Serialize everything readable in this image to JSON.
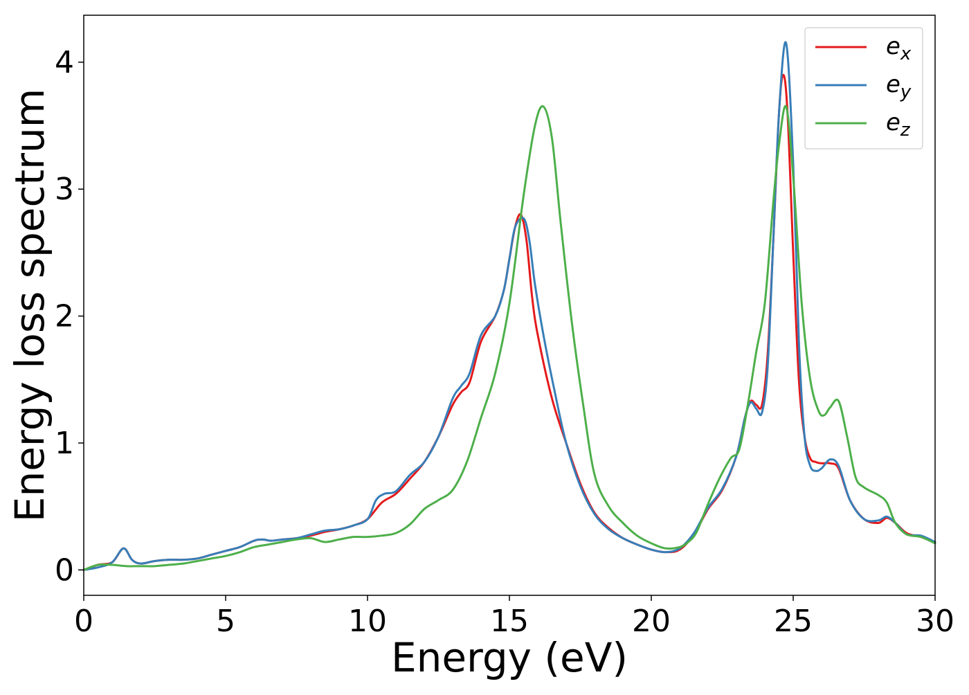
{
  "chart_data": {
    "type": "line",
    "title": "",
    "xlabel": "Energy (eV)",
    "ylabel": "Energy loss spectrum",
    "xlim": [
      0,
      30
    ],
    "ylim": [
      -0.2,
      4.37
    ],
    "xticks": [
      0,
      5,
      10,
      15,
      20,
      25,
      30
    ],
    "xtick_labels": [
      "0",
      "5",
      "10",
      "15",
      "20",
      "25",
      "30"
    ],
    "yticks": [
      0,
      1,
      2,
      3,
      4
    ],
    "ytick_labels": [
      "0",
      "1",
      "2",
      "3",
      "4"
    ],
    "grid": false,
    "legend": {
      "position": "top-right"
    },
    "series": [
      {
        "name": "e_x",
        "label_base": "e",
        "label_sub": "x",
        "color": "#e41a1c",
        "x": [
          0,
          0.5,
          1.0,
          1.4,
          1.7,
          2.0,
          2.5,
          3.0,
          3.5,
          4.0,
          4.5,
          5.0,
          5.5,
          6.0,
          6.3,
          6.6,
          7.0,
          7.5,
          8.0,
          8.5,
          9.0,
          9.5,
          10.0,
          10.5,
          11.0,
          11.5,
          12.0,
          12.5,
          13.0,
          13.3,
          13.6,
          14.0,
          14.5,
          14.8,
          15.0,
          15.2,
          15.4,
          15.6,
          15.8,
          16.0,
          16.5,
          17.0,
          17.5,
          18.0,
          18.5,
          19.0,
          19.5,
          20.0,
          20.5,
          21.0,
          21.5,
          22.0,
          22.5,
          23.0,
          23.3,
          23.5,
          23.7,
          23.9,
          24.1,
          24.3,
          24.5,
          24.65,
          24.8,
          25.0,
          25.2,
          25.4,
          25.6,
          25.8,
          26.0,
          26.3,
          26.6,
          27.0,
          27.5,
          28.0,
          28.3,
          28.6,
          29.0,
          29.5,
          30.0
        ],
        "y": [
          0.0,
          0.04,
          0.06,
          0.17,
          0.08,
          0.05,
          0.07,
          0.08,
          0.08,
          0.09,
          0.12,
          0.15,
          0.18,
          0.23,
          0.24,
          0.23,
          0.24,
          0.25,
          0.27,
          0.3,
          0.32,
          0.35,
          0.4,
          0.53,
          0.6,
          0.72,
          0.85,
          1.05,
          1.3,
          1.4,
          1.48,
          1.8,
          2.0,
          2.2,
          2.45,
          2.7,
          2.8,
          2.6,
          2.15,
          1.85,
          1.35,
          1.0,
          0.68,
          0.45,
          0.33,
          0.25,
          0.2,
          0.16,
          0.14,
          0.16,
          0.28,
          0.48,
          0.63,
          0.9,
          1.2,
          1.33,
          1.3,
          1.3,
          1.7,
          2.6,
          3.6,
          3.9,
          3.6,
          2.5,
          1.5,
          1.05,
          0.88,
          0.85,
          0.84,
          0.84,
          0.8,
          0.55,
          0.4,
          0.37,
          0.41,
          0.37,
          0.29,
          0.26,
          0.22
        ]
      },
      {
        "name": "e_y",
        "label_base": "e",
        "label_sub": "y",
        "color": "#377eb8",
        "x": [
          0,
          0.5,
          1.0,
          1.4,
          1.7,
          2.0,
          2.5,
          3.0,
          3.5,
          4.0,
          4.5,
          5.0,
          5.5,
          6.0,
          6.3,
          6.6,
          7.0,
          7.5,
          8.0,
          8.5,
          9.0,
          9.5,
          10.0,
          10.3,
          10.6,
          11.0,
          11.5,
          12.0,
          12.5,
          13.0,
          13.3,
          13.6,
          14.0,
          14.5,
          14.8,
          15.0,
          15.2,
          15.5,
          15.7,
          15.9,
          16.2,
          16.6,
          17.0,
          17.5,
          18.0,
          18.5,
          19.0,
          19.5,
          20.0,
          20.5,
          21.0,
          21.5,
          22.0,
          22.5,
          23.0,
          23.3,
          23.5,
          23.7,
          23.9,
          24.1,
          24.3,
          24.5,
          24.75,
          25.0,
          25.2,
          25.4,
          25.6,
          25.8,
          26.0,
          26.3,
          26.6,
          27.0,
          27.5,
          28.0,
          28.3,
          28.6,
          29.0,
          29.5,
          30.0
        ],
        "y": [
          0.0,
          0.02,
          0.06,
          0.17,
          0.08,
          0.05,
          0.07,
          0.08,
          0.08,
          0.09,
          0.12,
          0.15,
          0.18,
          0.23,
          0.24,
          0.23,
          0.24,
          0.25,
          0.28,
          0.31,
          0.32,
          0.35,
          0.4,
          0.55,
          0.6,
          0.62,
          0.75,
          0.85,
          1.05,
          1.35,
          1.45,
          1.55,
          1.85,
          2.0,
          2.2,
          2.45,
          2.7,
          2.77,
          2.6,
          2.25,
          1.85,
          1.4,
          1.0,
          0.66,
          0.44,
          0.32,
          0.25,
          0.2,
          0.16,
          0.14,
          0.17,
          0.29,
          0.49,
          0.64,
          0.9,
          1.2,
          1.32,
          1.27,
          1.24,
          1.6,
          2.6,
          3.6,
          4.15,
          3.2,
          1.8,
          1.05,
          0.82,
          0.78,
          0.8,
          0.87,
          0.82,
          0.55,
          0.4,
          0.39,
          0.42,
          0.37,
          0.28,
          0.27,
          0.22
        ]
      },
      {
        "name": "e_z",
        "label_base": "e",
        "label_sub": "z",
        "color": "#4daf4a",
        "x": [
          0,
          0.5,
          1.0,
          1.5,
          2.0,
          2.5,
          3.0,
          3.5,
          4.0,
          4.5,
          5.0,
          5.5,
          6.0,
          6.5,
          7.0,
          7.5,
          8.0,
          8.5,
          9.0,
          9.5,
          10.0,
          10.5,
          11.0,
          11.5,
          12.0,
          12.5,
          13.0,
          13.5,
          14.0,
          14.5,
          15.0,
          15.5,
          15.9,
          16.2,
          16.5,
          16.8,
          17.2,
          17.6,
          18.0,
          18.5,
          19.0,
          19.5,
          20.0,
          20.5,
          21.0,
          21.3,
          21.6,
          22.0,
          22.4,
          22.8,
          23.1,
          23.4,
          23.7,
          24.0,
          24.3,
          24.5,
          24.75,
          25.0,
          25.3,
          25.6,
          25.9,
          26.1,
          26.3,
          26.6,
          26.9,
          27.2,
          27.5,
          28.0,
          28.3,
          28.6,
          29.0,
          29.5,
          30.0
        ],
        "y": [
          0.0,
          0.04,
          0.04,
          0.03,
          0.03,
          0.03,
          0.04,
          0.05,
          0.07,
          0.09,
          0.11,
          0.14,
          0.18,
          0.2,
          0.22,
          0.24,
          0.25,
          0.22,
          0.24,
          0.26,
          0.26,
          0.27,
          0.29,
          0.36,
          0.48,
          0.55,
          0.63,
          0.85,
          1.2,
          1.55,
          2.1,
          2.95,
          3.5,
          3.65,
          3.4,
          2.75,
          1.95,
          1.3,
          0.75,
          0.5,
          0.37,
          0.27,
          0.21,
          0.17,
          0.18,
          0.22,
          0.3,
          0.52,
          0.72,
          0.88,
          0.95,
          1.3,
          1.72,
          2.1,
          2.9,
          3.35,
          3.65,
          3.1,
          2.1,
          1.5,
          1.25,
          1.22,
          1.28,
          1.33,
          1.05,
          0.73,
          0.65,
          0.59,
          0.53,
          0.37,
          0.28,
          0.26,
          0.21
        ]
      }
    ]
  }
}
